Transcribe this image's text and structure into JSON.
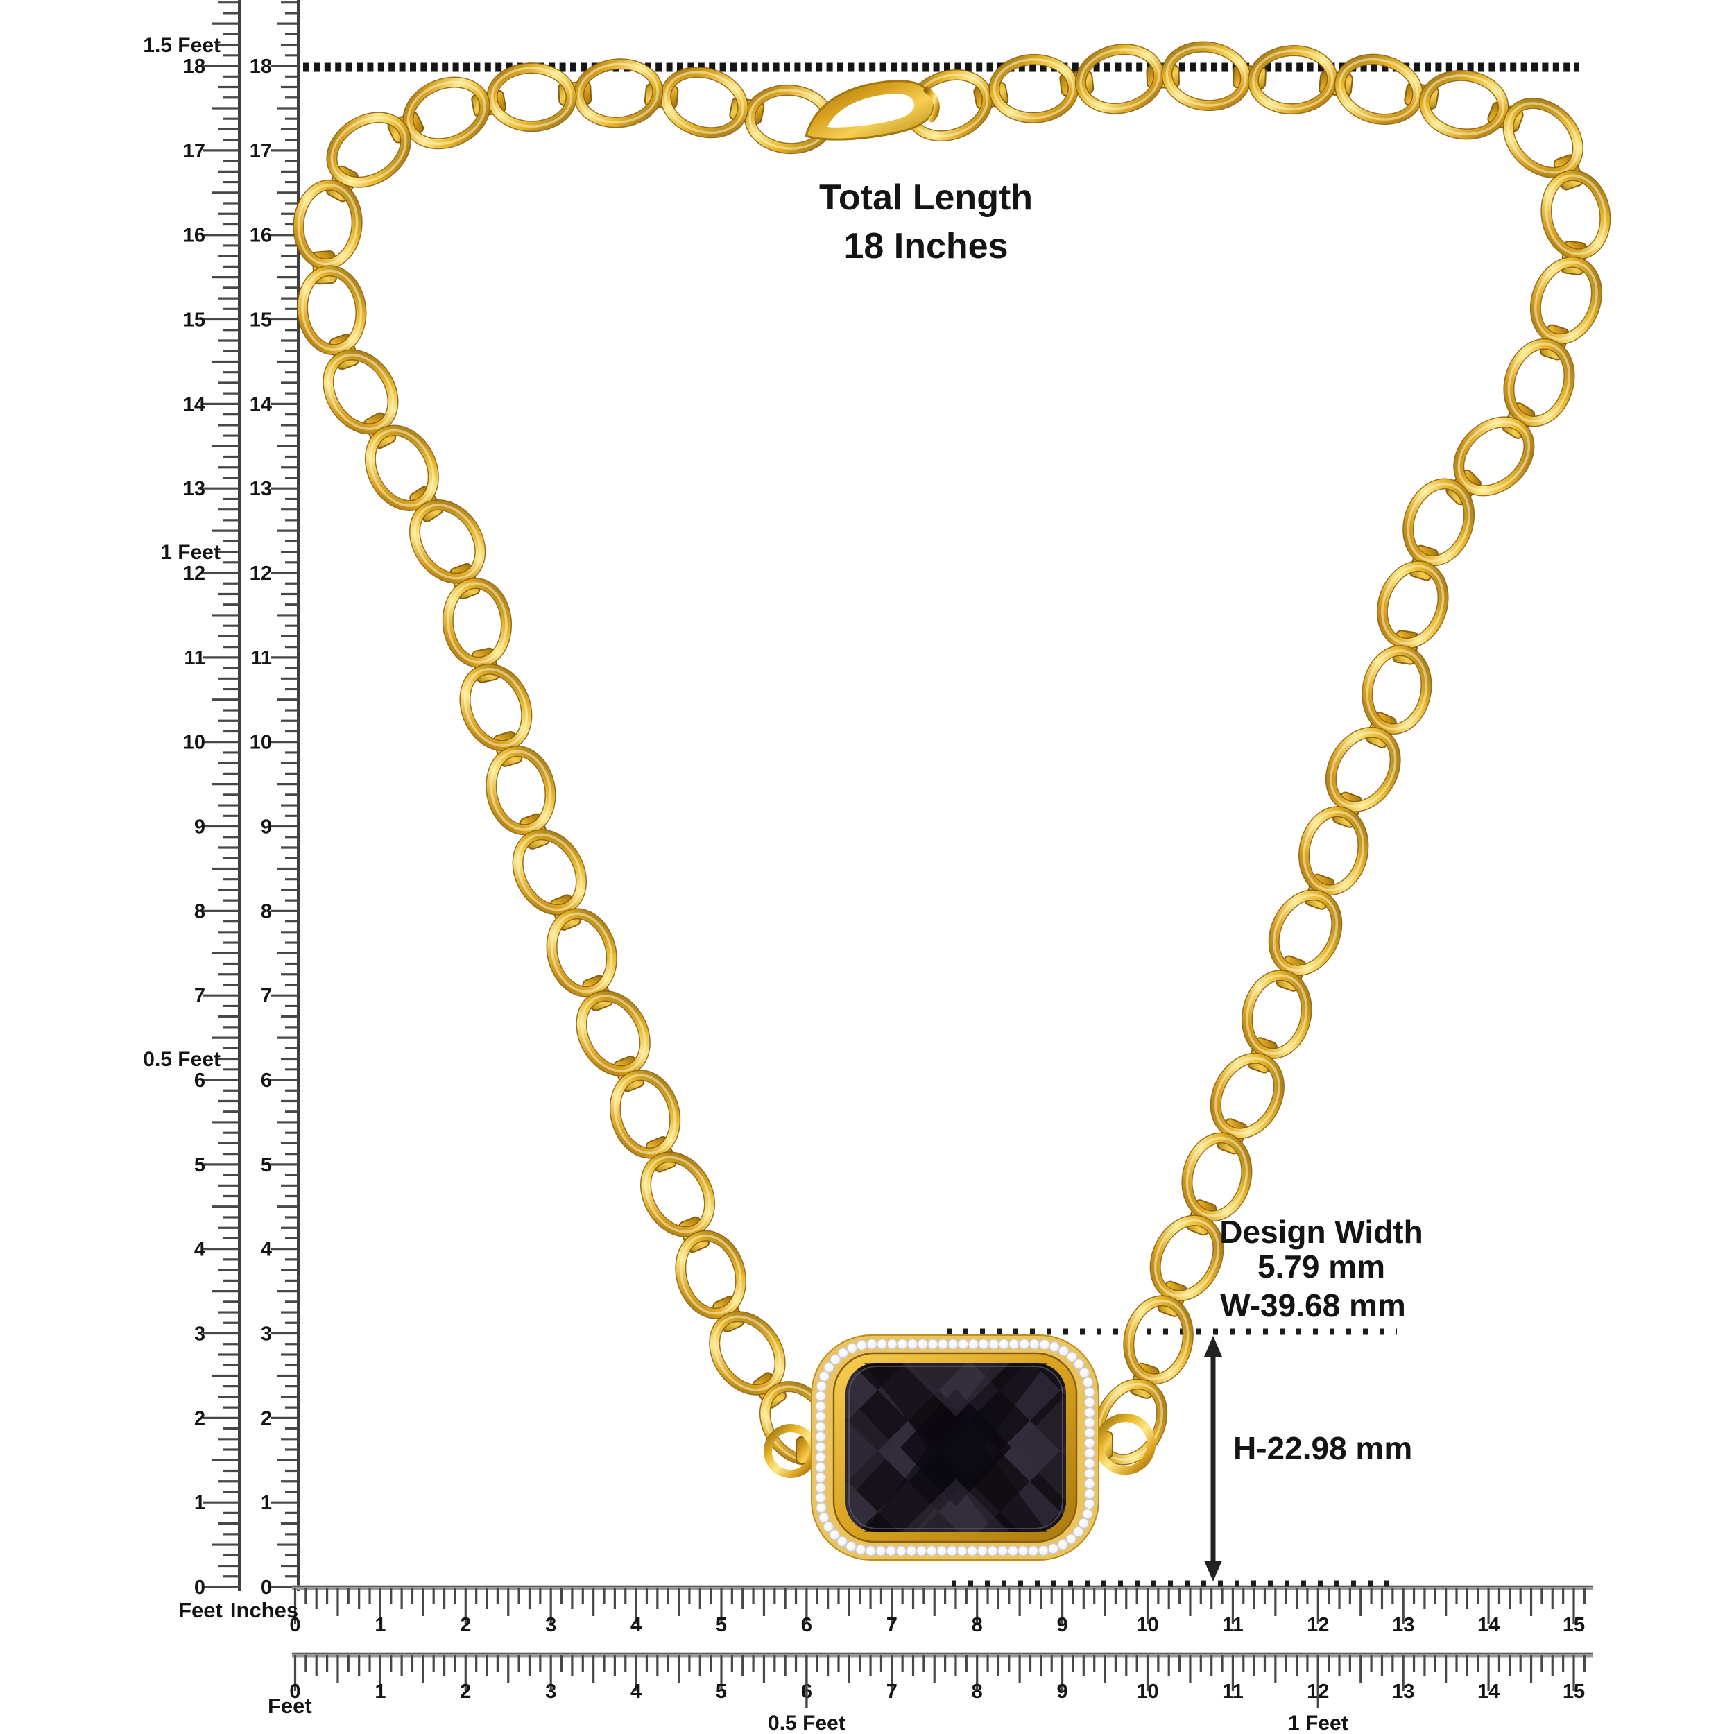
{
  "labels": {
    "total_length_line1": "Total Length",
    "total_length_line2": "18 Inches",
    "design_width_line1": "Design Width",
    "design_width_line2": "5.79 mm",
    "pendant_width": "W-39.68 mm",
    "pendant_height": "H-22.98 mm"
  },
  "rulers": {
    "vertical_feet": {
      "unit": "Feet",
      "numbers": [
        "0",
        "1",
        "2",
        "3",
        "4",
        "5",
        "6",
        "7",
        "8",
        "9",
        "10",
        "11",
        "12",
        "13",
        "14",
        "15",
        "16",
        "17",
        "18"
      ],
      "feet_marks": {
        "6": "0.5 Feet",
        "12": "1 Feet",
        "18": "1.5 Feet"
      }
    },
    "vertical_inches": {
      "unit": "Inches",
      "numbers": [
        "0",
        "1",
        "2",
        "3",
        "4",
        "5",
        "6",
        "7",
        "8",
        "9",
        "10",
        "11",
        "12",
        "13",
        "14",
        "15",
        "16",
        "17",
        "18"
      ]
    },
    "horizontal_inches": {
      "numbers": [
        "0",
        "1",
        "2",
        "3",
        "4",
        "5",
        "6",
        "7",
        "8",
        "9",
        "10",
        "11",
        "12",
        "13",
        "14",
        "15"
      ]
    },
    "horizontal_feet": {
      "unit": "Feet",
      "numbers": [
        "0",
        "1",
        "2",
        "3",
        "4",
        "5",
        "6",
        "7",
        "8",
        "9",
        "10",
        "11",
        "12",
        "13",
        "14",
        "15"
      ],
      "feet_marks": {
        "6": "0.5 Feet",
        "12": "1 Feet"
      }
    }
  },
  "colors": {
    "ink": "#141414",
    "tick": "#474747",
    "ruler_line_vertical": "#3f3f3f",
    "ruler_line_horizontal": "#989898",
    "gold_shadow": "#8F6710",
    "gold_deep": "#C8921A",
    "gold_mid": "#E7B62A",
    "gold_light": "#FFE98C",
    "halo_band": "#EBC45F",
    "stone_black": "#151118",
    "diamond_white": "#FFFFFF"
  }
}
